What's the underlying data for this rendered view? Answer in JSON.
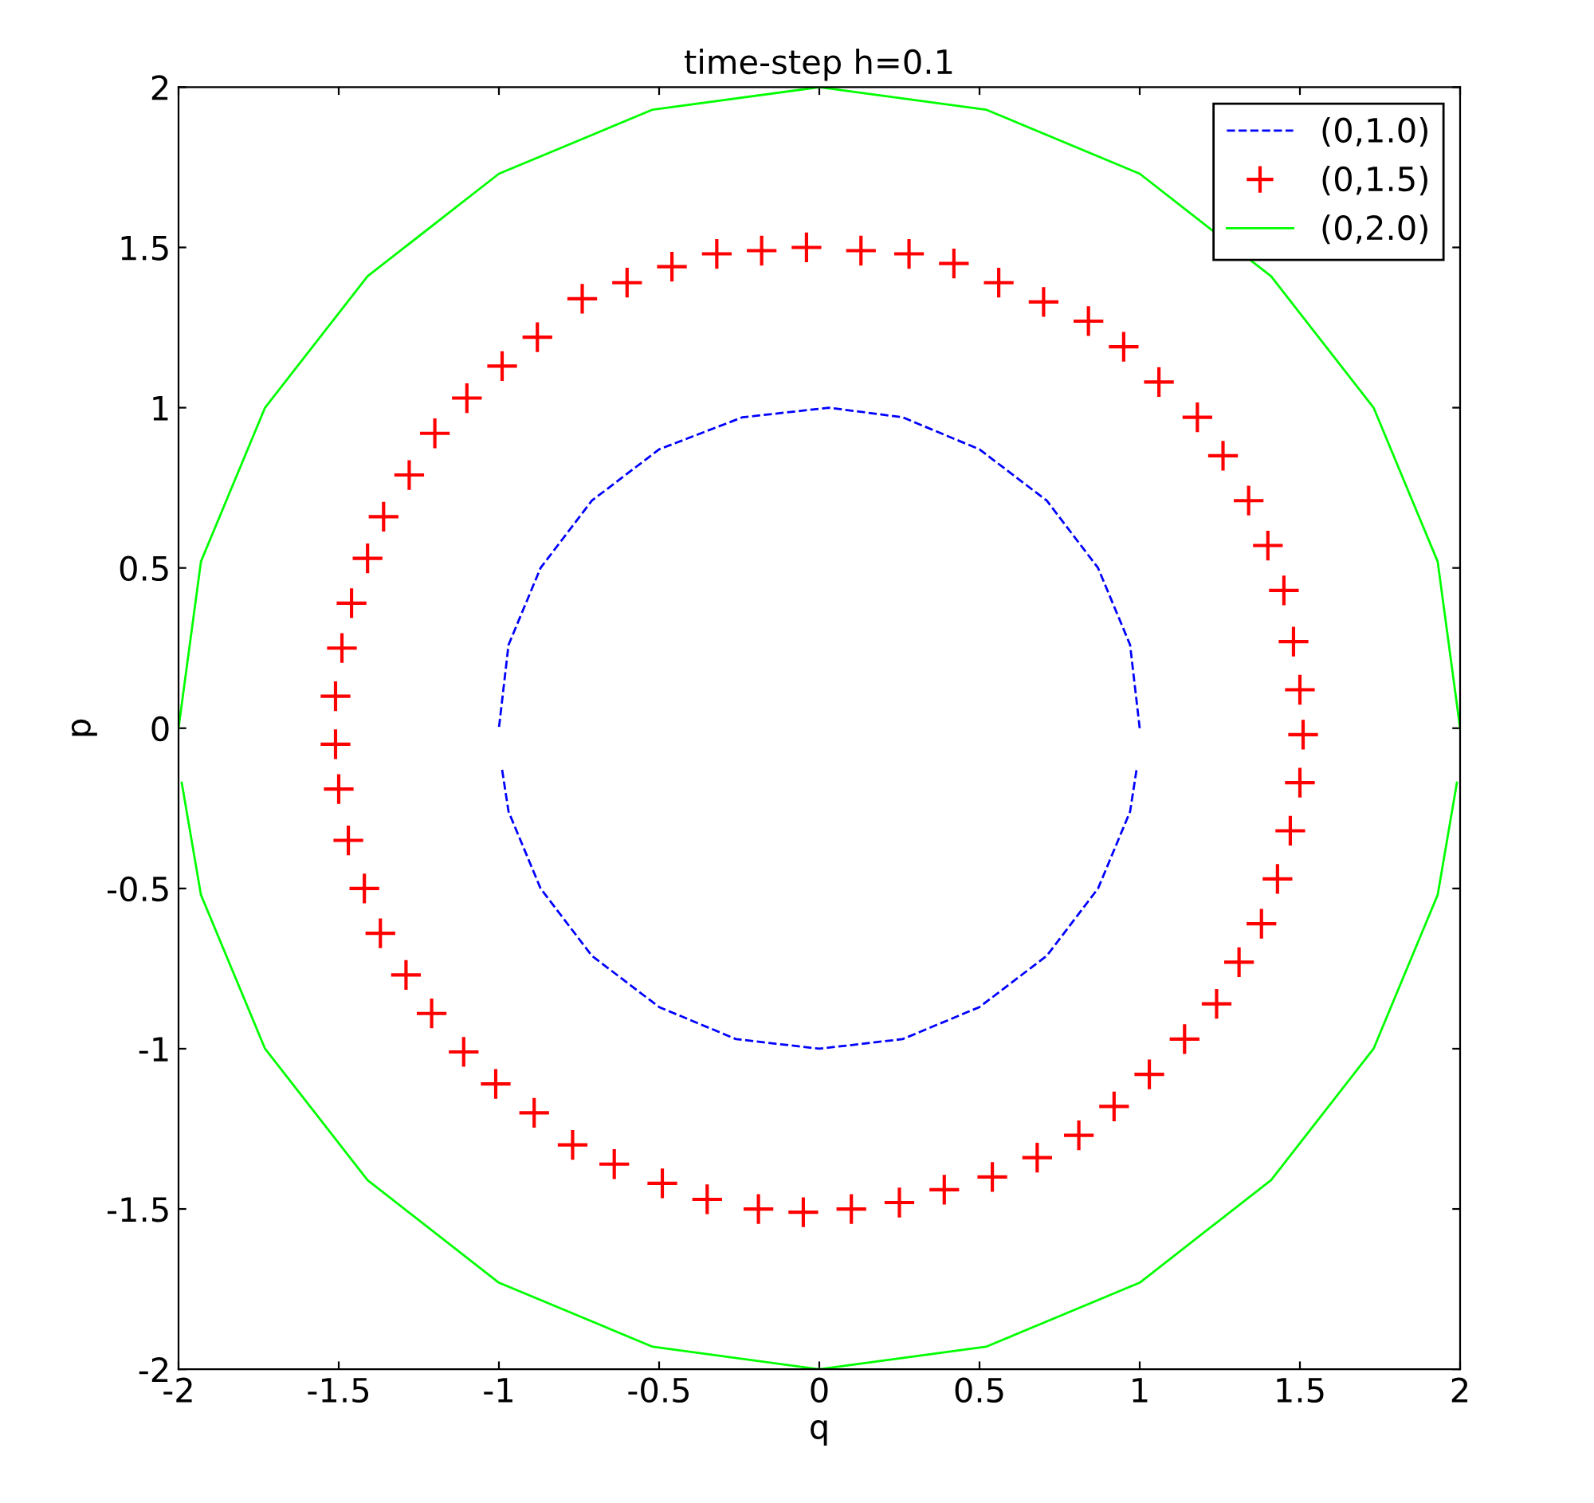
{
  "chart_data": {
    "type": "line",
    "title": "time-step h=0.1",
    "xlabel": "q",
    "ylabel": "p",
    "xlim": [
      -2,
      2
    ],
    "ylim": [
      -2,
      2
    ],
    "xticks": [
      -2,
      -1.5,
      -1,
      -0.5,
      0,
      0.5,
      1,
      1.5,
      2
    ],
    "yticks": [
      -2,
      -1.5,
      -1,
      -0.5,
      0,
      0.5,
      1,
      1.5,
      2
    ],
    "grid": false,
    "legend": "top right",
    "series": [
      {
        "name": "(0,1.0)",
        "color": "#0000ff",
        "line_style": "dashed",
        "marker": "none",
        "x": [
          1,
          0.97,
          0.87,
          0.71,
          0.5,
          0.26,
          0.03,
          -0.24,
          -0.5,
          -0.71,
          -0.87,
          -0.97,
          -1
        ],
        "values": [
          0,
          0.26,
          0.5,
          0.71,
          0.87,
          0.97,
          1,
          0.97,
          0.87,
          0.71,
          0.5,
          0.26,
          0
        ]
      },
      {
        "color": "#0000ff",
        "line_style": "dashed",
        "marker": "none",
        "x": [
          -0.99,
          -0.97,
          -0.87,
          -0.71,
          -0.5,
          -0.26,
          0,
          0.26,
          0.5,
          0.71,
          0.87,
          0.97,
          0.99
        ],
        "values": [
          -0.13,
          -0.26,
          -0.5,
          -0.71,
          -0.87,
          -0.97,
          -1,
          -0.97,
          -0.87,
          -0.71,
          -0.5,
          -0.26,
          -0.13
        ]
      },
      {
        "name": "(0,1.5)",
        "type": "scatter",
        "color": "#ff0000",
        "marker": "cross",
        "x": [
          -0.04,
          -0.18,
          -0.32,
          -0.46,
          -0.6,
          -0.74,
          -0.88,
          -0.99,
          -1.1,
          -1.2,
          -1.28,
          -1.36,
          -1.41,
          -1.46,
          -1.49,
          -1.51,
          -1.51,
          -1.5,
          -1.47,
          -1.42,
          -1.37,
          -1.29,
          -1.21,
          -1.11,
          -1.01,
          -0.89,
          -0.77,
          -0.64,
          -0.49,
          -0.35,
          -0.19,
          -0.05,
          0.1,
          0.25,
          0.39,
          0.54,
          0.68,
          0.81,
          0.92,
          1.03,
          1.14,
          1.24,
          1.31,
          1.38,
          1.43,
          1.47,
          1.5,
          1.51,
          1.5,
          1.48,
          1.45,
          1.4,
          1.34,
          1.26,
          1.18,
          1.06,
          0.95,
          0.84,
          0.7,
          0.56,
          0.42,
          0.28,
          0.13
        ],
        "values": [
          1.5,
          1.49,
          1.48,
          1.44,
          1.39,
          1.34,
          1.22,
          1.13,
          1.03,
          0.92,
          0.79,
          0.66,
          0.53,
          0.39,
          0.25,
          0.1,
          -0.05,
          -0.19,
          -0.35,
          -0.5,
          -0.64,
          -0.77,
          -0.89,
          -1.01,
          -1.11,
          -1.2,
          -1.3,
          -1.36,
          -1.42,
          -1.47,
          -1.5,
          -1.51,
          -1.5,
          -1.48,
          -1.44,
          -1.4,
          -1.34,
          -1.27,
          -1.18,
          -1.08,
          -0.97,
          -0.86,
          -0.73,
          -0.61,
          -0.47,
          -0.32,
          -0.17,
          -0.02,
          0.12,
          0.27,
          0.43,
          0.57,
          0.71,
          0.85,
          0.97,
          1.08,
          1.19,
          1.27,
          1.33,
          1.39,
          1.45,
          1.48,
          1.49
        ]
      },
      {
        "name": "(0,2.0)",
        "color": "#00ff00",
        "line_style": "solid",
        "marker": "none",
        "x": [
          2,
          1.93,
          1.73,
          1.41,
          1,
          0.52,
          0,
          -0.52,
          -1,
          -1.41,
          -1.73,
          -1.93,
          -2
        ],
        "values": [
          0,
          0.52,
          1,
          1.41,
          1.73,
          1.93,
          2,
          1.93,
          1.73,
          1.41,
          1,
          0.52,
          0
        ]
      },
      {
        "color": "#00ff00",
        "line_style": "solid",
        "marker": "none",
        "x": [
          -1.99,
          -1.93,
          -1.73,
          -1.41,
          -1,
          -0.52,
          0,
          0.52,
          1,
          1.41,
          1.73,
          1.93,
          1.99
        ],
        "values": [
          -0.17,
          -0.52,
          -1,
          -1.41,
          -1.73,
          -1.93,
          -2,
          -1.93,
          -1.73,
          -1.41,
          -1,
          -0.52,
          -0.17
        ]
      }
    ]
  }
}
